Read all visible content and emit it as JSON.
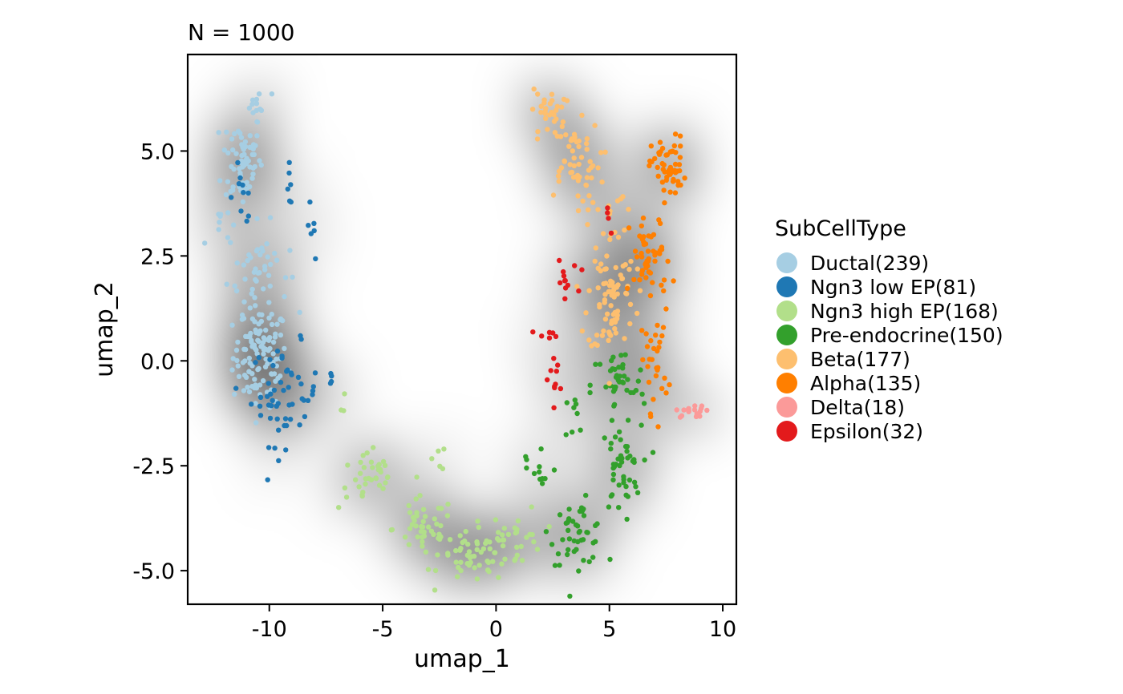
{
  "chart_data": {
    "type": "scatter",
    "title": "N = 1000",
    "xlabel": "umap_1",
    "ylabel": "umap_2",
    "xlim": [
      -13.6,
      10.6
    ],
    "ylim": [
      -5.8,
      7.3
    ],
    "xticks": [
      -10,
      -5,
      0,
      5,
      10
    ],
    "xtick_labels": [
      "-10",
      "-5",
      "0",
      "5",
      "10"
    ],
    "yticks": [
      -5,
      -2.5,
      0,
      2.5,
      5
    ],
    "ytick_labels": [
      "-5.0",
      "-2.5",
      "0.0",
      "2.5",
      "5.0"
    ],
    "grid": false,
    "background": "2D density heatmap (white to black)",
    "legend": {
      "title": "SubCellType",
      "placement": "right",
      "entries": [
        {
          "label": "Ductal(239)",
          "color": "#A6CEE3"
        },
        {
          "label": "Ngn3 low EP(81)",
          "color": "#1F78B4"
        },
        {
          "label": "Ngn3 high EP(168)",
          "color": "#B2DF8A"
        },
        {
          "label": "Pre-endocrine(150)",
          "color": "#33A02C"
        },
        {
          "label": "Beta(177)",
          "color": "#FDBF6F"
        },
        {
          "label": "Alpha(135)",
          "color": "#FF7F00"
        },
        {
          "label": "Delta(18)",
          "color": "#FB9A99"
        },
        {
          "label": "Epsilon(32)",
          "color": "#E31A1C"
        }
      ]
    },
    "series": [
      {
        "name": "Ductal(239)",
        "color": "#A6CEE3",
        "count": 239,
        "clusters": [
          {
            "cx": -10.4,
            "cy": 0.1,
            "sx": 0.8,
            "sy": 0.8,
            "n": 110
          },
          {
            "cx": -11.2,
            "cy": 4.8,
            "sx": 0.6,
            "sy": 0.8,
            "n": 65
          },
          {
            "cx": -10.5,
            "cy": 2.2,
            "sx": 0.9,
            "sy": 0.7,
            "n": 45
          },
          {
            "cx": -12.2,
            "cy": 3.3,
            "sx": 0.3,
            "sy": 0.3,
            "n": 8
          },
          {
            "cx": -10.5,
            "cy": 6.1,
            "sx": 0.4,
            "sy": 0.2,
            "n": 11
          }
        ]
      },
      {
        "name": "Ngn3 low EP(81)",
        "color": "#1F78B4",
        "count": 81,
        "clusters": [
          {
            "cx": -9.3,
            "cy": -0.8,
            "sx": 1.0,
            "sy": 0.8,
            "n": 55
          },
          {
            "cx": -11.2,
            "cy": 4.0,
            "sx": 0.4,
            "sy": 0.5,
            "n": 10
          },
          {
            "cx": -9.2,
            "cy": 4.2,
            "sx": 0.4,
            "sy": 0.3,
            "n": 6
          },
          {
            "cx": -8.3,
            "cy": 3.2,
            "sx": 0.2,
            "sy": 0.4,
            "n": 6
          },
          {
            "cx": -7.2,
            "cy": -0.4,
            "sx": 0.1,
            "sy": 0.1,
            "n": 4
          }
        ]
      },
      {
        "name": "Ngn3 high EP(168)",
        "color": "#B2DF8A",
        "count": 168,
        "clusters": [
          {
            "cx": -5.6,
            "cy": -2.8,
            "sx": 0.9,
            "sy": 0.5,
            "n": 35
          },
          {
            "cx": -3.2,
            "cy": -4.0,
            "sx": 0.9,
            "sy": 0.5,
            "n": 45
          },
          {
            "cx": -1.0,
            "cy": -4.7,
            "sx": 1.0,
            "sy": 0.4,
            "n": 50
          },
          {
            "cx": 0.9,
            "cy": -4.2,
            "sx": 0.8,
            "sy": 0.5,
            "n": 30
          },
          {
            "cx": -2.5,
            "cy": -2.3,
            "sx": 0.2,
            "sy": 0.2,
            "n": 5
          },
          {
            "cx": -6.7,
            "cy": -1.0,
            "sx": 0.2,
            "sy": 0.2,
            "n": 3
          }
        ]
      },
      {
        "name": "Pre-endocrine(150)",
        "color": "#33A02C",
        "count": 150,
        "clusters": [
          {
            "cx": 3.6,
            "cy": -4.1,
            "sx": 0.8,
            "sy": 0.5,
            "n": 45
          },
          {
            "cx": 5.5,
            "cy": -2.6,
            "sx": 0.6,
            "sy": 0.7,
            "n": 45
          },
          {
            "cx": 5.4,
            "cy": -0.6,
            "sx": 0.8,
            "sy": 0.6,
            "n": 40
          },
          {
            "cx": 1.8,
            "cy": -2.6,
            "sx": 0.6,
            "sy": 0.5,
            "n": 12
          },
          {
            "cx": 3.6,
            "cy": -1.4,
            "sx": 0.4,
            "sy": 0.5,
            "n": 8
          }
        ]
      },
      {
        "name": "Beta(177)",
        "color": "#FDBF6F",
        "count": 177,
        "clusters": [
          {
            "cx": 5.1,
            "cy": 1.6,
            "sx": 0.7,
            "sy": 1.0,
            "n": 80
          },
          {
            "cx": 3.4,
            "cy": 4.8,
            "sx": 0.8,
            "sy": 0.6,
            "n": 50
          },
          {
            "cx": 2.3,
            "cy": 5.9,
            "sx": 0.5,
            "sy": 0.4,
            "n": 30
          },
          {
            "cx": 4.8,
            "cy": 3.6,
            "sx": 0.8,
            "sy": 0.5,
            "n": 17
          }
        ]
      },
      {
        "name": "Alpha(135)",
        "color": "#FF7F00",
        "count": 135,
        "clusters": [
          {
            "cx": 7.6,
            "cy": 4.6,
            "sx": 0.5,
            "sy": 0.5,
            "n": 55
          },
          {
            "cx": 6.8,
            "cy": 2.4,
            "sx": 0.6,
            "sy": 0.7,
            "n": 50
          },
          {
            "cx": 7.0,
            "cy": 0.0,
            "sx": 0.4,
            "sy": 0.8,
            "n": 30
          }
        ]
      },
      {
        "name": "Delta(18)",
        "color": "#FB9A99",
        "count": 18,
        "clusters": [
          {
            "cx": 8.7,
            "cy": -1.2,
            "sx": 0.5,
            "sy": 0.1,
            "n": 18
          }
        ]
      },
      {
        "name": "Epsilon(32)",
        "color": "#E31A1C",
        "count": 32,
        "clusters": [
          {
            "cx": 3.0,
            "cy": 1.9,
            "sx": 0.4,
            "sy": 0.3,
            "n": 12
          },
          {
            "cx": 2.3,
            "cy": 0.6,
            "sx": 0.3,
            "sy": 0.3,
            "n": 6
          },
          {
            "cx": 2.5,
            "cy": -0.4,
            "sx": 0.5,
            "sy": 0.4,
            "n": 10
          },
          {
            "cx": 5.0,
            "cy": 3.5,
            "sx": 0.3,
            "sy": 0.3,
            "n": 4
          }
        ]
      }
    ]
  }
}
